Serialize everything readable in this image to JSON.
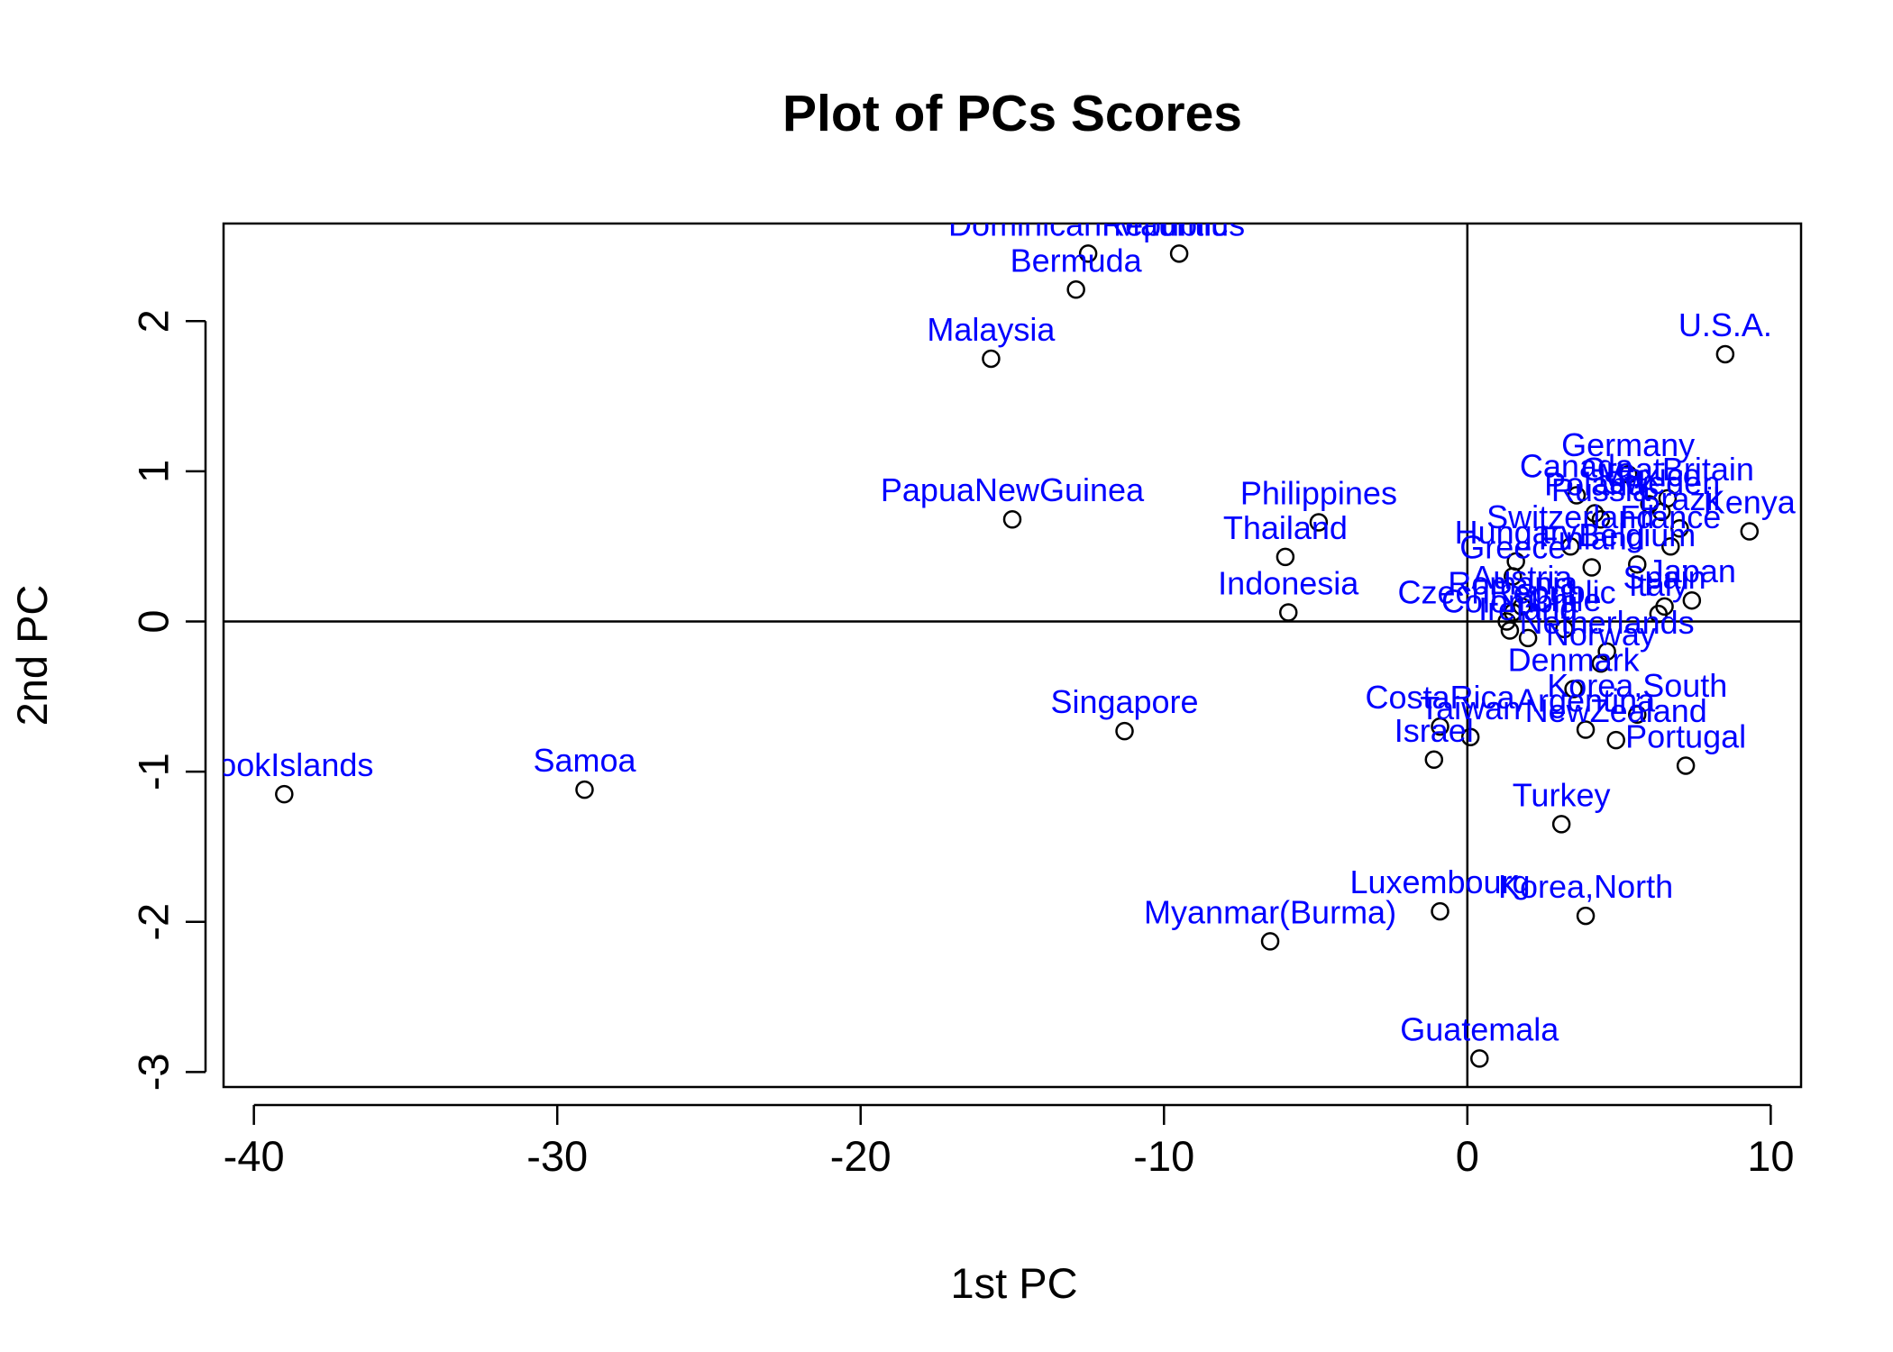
{
  "chart_data": {
    "type": "scatter",
    "title": "Plot of PCs Scores",
    "xlabel": "1st PC",
    "ylabel": "2nd PC",
    "xlim": [
      -41,
      11
    ],
    "ylim": [
      -3.1,
      2.65
    ],
    "xticks": [
      -40,
      -30,
      -20,
      -10,
      0,
      10
    ],
    "xtick_labels": [
      "-40",
      "-30",
      "-20",
      "-10",
      "0",
      "10"
    ],
    "yticks": [
      -3,
      -2,
      -1,
      0,
      1,
      2
    ],
    "ytick_labels": [
      "-3",
      "-2",
      "-1",
      "0",
      "1",
      "2"
    ],
    "reference_lines": {
      "x": 0,
      "y": 0
    },
    "points": [
      {
        "label": "CookIslands",
        "x": -39.0,
        "y": -1.15
      },
      {
        "label": "Samoa",
        "x": -29.1,
        "y": -1.12
      },
      {
        "label": "Singapore",
        "x": -11.3,
        "y": -0.73
      },
      {
        "label": "PapuaNewGuinea",
        "x": -15.0,
        "y": 0.68
      },
      {
        "label": "Malaysia",
        "x": -15.7,
        "y": 1.75
      },
      {
        "label": "Bermuda",
        "x": -12.9,
        "y": 2.21
      },
      {
        "label": "DominicanRepublic",
        "x": -12.5,
        "y": 2.45
      },
      {
        "label": "Mauritius",
        "x": -9.5,
        "y": 2.45
      },
      {
        "label": "Philippines",
        "x": -4.9,
        "y": 0.66
      },
      {
        "label": "Thailand",
        "x": -6.0,
        "y": 0.43
      },
      {
        "label": "Indonesia",
        "x": -5.9,
        "y": 0.06
      },
      {
        "label": "Myanmar(Burma)",
        "x": -6.5,
        "y": -2.13
      },
      {
        "label": "Luxembourg",
        "x": -0.9,
        "y": -1.93
      },
      {
        "label": "Guatemala",
        "x": 0.4,
        "y": -2.91
      },
      {
        "label": "Israel",
        "x": -1.1,
        "y": -0.92
      },
      {
        "label": "CostaRica",
        "x": -0.9,
        "y": -0.7
      },
      {
        "label": "Taiwan",
        "x": 0.1,
        "y": -0.77
      },
      {
        "label": "Turkey",
        "x": 3.1,
        "y": -1.35
      },
      {
        "label": "Korea,North",
        "x": 3.9,
        "y": -1.96
      },
      {
        "label": "Portugal",
        "x": 7.2,
        "y": -0.96
      },
      {
        "label": "NewZealand",
        "x": 4.9,
        "y": -0.79
      },
      {
        "label": "Argentina",
        "x": 3.9,
        "y": -0.72
      },
      {
        "label": "Korea,South",
        "x": 5.6,
        "y": -0.62
      },
      {
        "label": "Denmark",
        "x": 3.5,
        "y": -0.45
      },
      {
        "label": "Norway",
        "x": 4.4,
        "y": -0.28
      },
      {
        "label": "Netherlands",
        "x": 4.6,
        "y": -0.2
      },
      {
        "label": "Ireland",
        "x": 2.0,
        "y": -0.11
      },
      {
        "label": "Colombia",
        "x": 1.4,
        "y": -0.06
      },
      {
        "label": "CzechRepublic",
        "x": 1.3,
        "y": 0.0
      },
      {
        "label": "Romania",
        "x": 1.5,
        "y": 0.06
      },
      {
        "label": "Austria",
        "x": 1.8,
        "y": 0.1
      },
      {
        "label": "Chile",
        "x": 3.2,
        "y": -0.05
      },
      {
        "label": "Spain",
        "x": 6.5,
        "y": 0.1
      },
      {
        "label": "Italy",
        "x": 6.3,
        "y": 0.05
      },
      {
        "label": "Japan",
        "x": 7.4,
        "y": 0.14
      },
      {
        "label": "Finland",
        "x": 4.1,
        "y": 0.36
      },
      {
        "label": "Greece",
        "x": 1.5,
        "y": 0.3
      },
      {
        "label": "Hungary",
        "x": 1.6,
        "y": 0.4
      },
      {
        "label": "Switzerland",
        "x": 3.4,
        "y": 0.5
      },
      {
        "label": "Belgium",
        "x": 5.6,
        "y": 0.38
      },
      {
        "label": "France",
        "x": 6.7,
        "y": 0.5
      },
      {
        "label": "Brazil",
        "x": 7.0,
        "y": 0.62
      },
      {
        "label": "Kenya",
        "x": 9.3,
        "y": 0.6
      },
      {
        "label": "Russia",
        "x": 4.4,
        "y": 0.68
      },
      {
        "label": "Poland",
        "x": 4.2,
        "y": 0.72
      },
      {
        "label": "Canada",
        "x": 3.6,
        "y": 0.84
      },
      {
        "label": "Germany",
        "x": 5.3,
        "y": 0.98
      },
      {
        "label": "GreatBritain",
        "x": 6.6,
        "y": 0.82
      },
      {
        "label": "Mexico",
        "x": 6.0,
        "y": 0.78
      },
      {
        "label": "Sweden",
        "x": 6.4,
        "y": 0.73
      },
      {
        "label": "U.S.A.",
        "x": 8.5,
        "y": 1.78
      }
    ]
  }
}
